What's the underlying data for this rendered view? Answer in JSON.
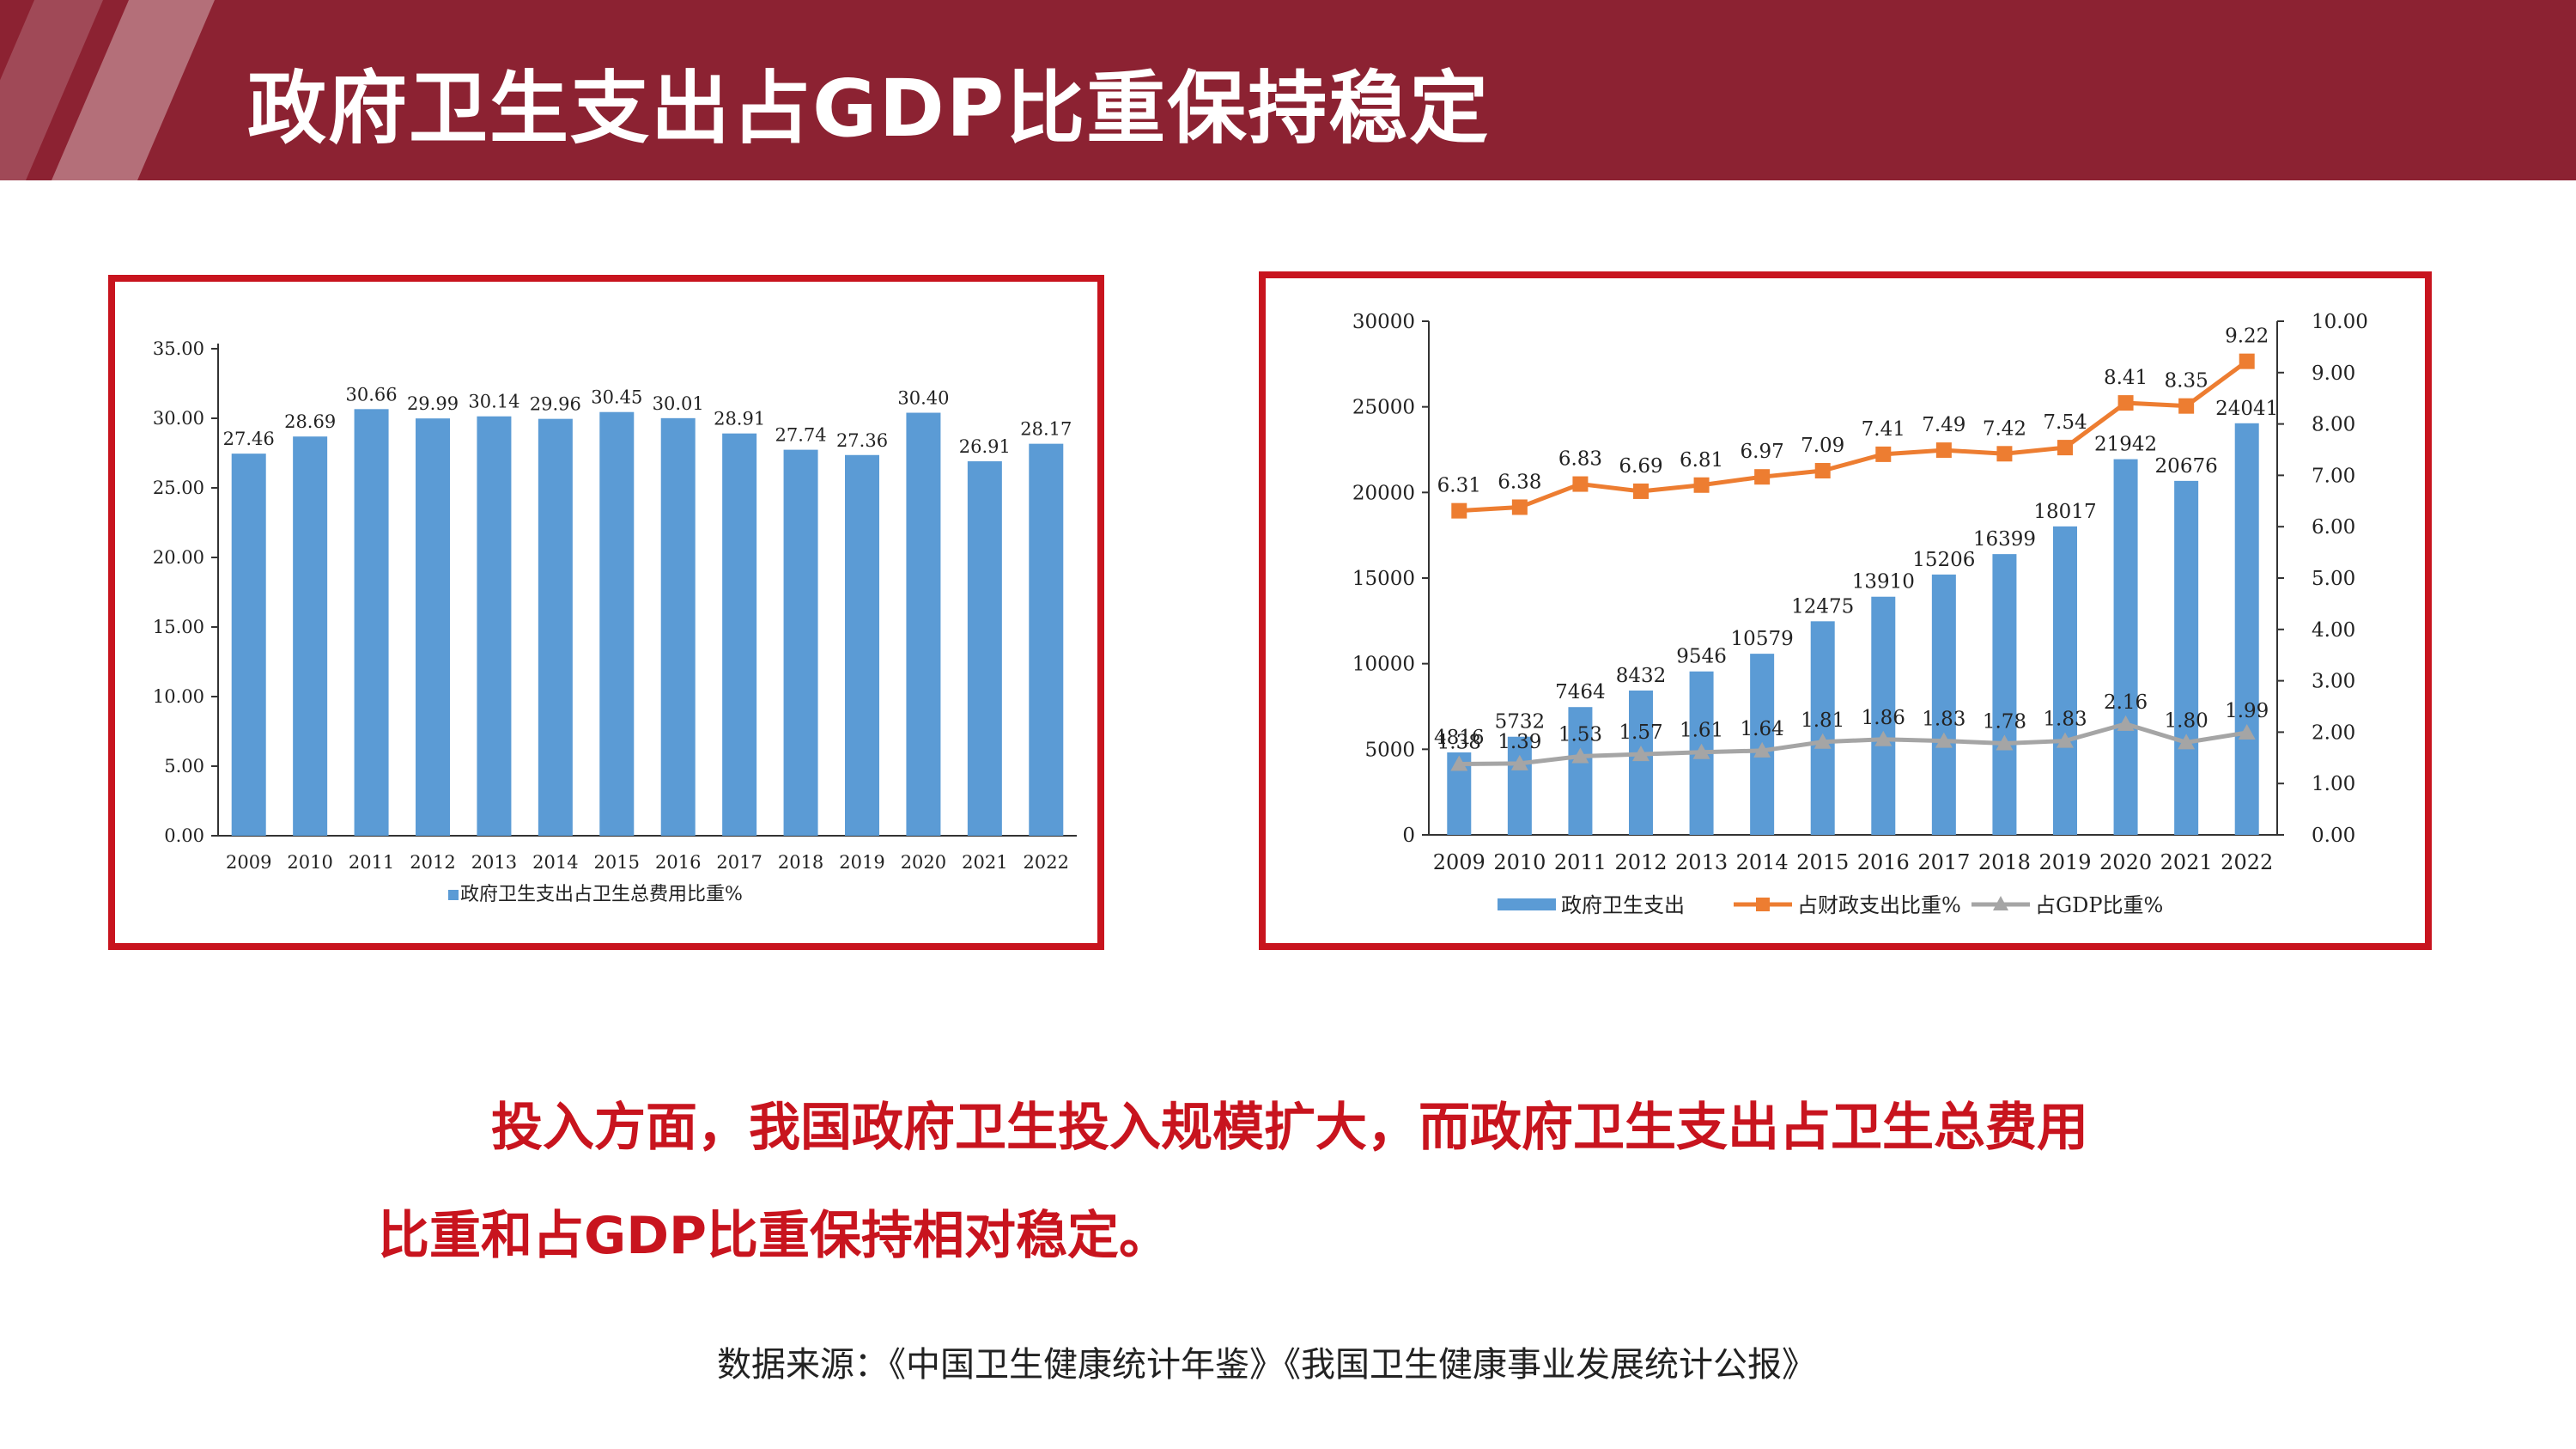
{
  "slide": {
    "title": "政府卫生支出占GDP比重保持稳定",
    "body_line1": "投入方面，我国政府卫生投入规模扩大，而政府卫生支出占卫生总费用",
    "body_line2": "比重和占GDP比重保持相对稳定。",
    "source": "数据来源：《中国卫生健康统计年鉴》《我国卫生健康事业发展统计公报》"
  },
  "colors": {
    "header": "#8c2232",
    "border": "#c8141e",
    "bar": "#5b9bd5",
    "orange": "#ed7d31",
    "gray": "#a5a5a5",
    "text_red": "#c8141e"
  },
  "chart_data": [
    {
      "type": "bar",
      "categories": [
        "2009",
        "2010",
        "2011",
        "2012",
        "2013",
        "2014",
        "2015",
        "2016",
        "2017",
        "2018",
        "2019",
        "2020",
        "2021",
        "2022"
      ],
      "series": [
        {
          "name": "政府卫生支出占卫生总费用比重%",
          "values": [
            27.46,
            28.69,
            30.66,
            29.99,
            30.14,
            29.96,
            30.45,
            30.01,
            28.91,
            27.74,
            27.36,
            30.4,
            26.91,
            28.17
          ]
        }
      ],
      "value_labels": [
        "27.46",
        "28.69",
        "30.66",
        "29.99",
        "30.14",
        "29.96",
        "30.45",
        "30.01",
        "28.91",
        "27.74",
        "27.36",
        "30.40",
        "26.91",
        "28.17"
      ],
      "ylim": [
        0,
        35
      ],
      "yticks": [
        "0.00",
        "5.00",
        "10.00",
        "15.00",
        "20.00",
        "25.00",
        "30.00",
        "35.00"
      ],
      "legend": "bottom"
    },
    {
      "type": "bar+line",
      "categories": [
        "2009",
        "2010",
        "2011",
        "2012",
        "2013",
        "2014",
        "2015",
        "2016",
        "2017",
        "2018",
        "2019",
        "2020",
        "2021",
        "2022"
      ],
      "series": [
        {
          "name": "政府卫生支出",
          "type": "bar",
          "axis": "left",
          "values": [
            4816,
            5732,
            7464,
            8432,
            9546,
            10579,
            12475,
            13910,
            15206,
            16399,
            18017,
            21942,
            20676,
            24041
          ],
          "labels": [
            "4816",
            "5732",
            "7464",
            "8432",
            "9546",
            "10579",
            "12475",
            "13910",
            "15206",
            "16399",
            "18017",
            "21942",
            "20676",
            "24041"
          ]
        },
        {
          "name": "占财政支出比重%",
          "type": "line",
          "axis": "right",
          "values": [
            6.31,
            6.38,
            6.83,
            6.69,
            6.81,
            6.97,
            7.09,
            7.41,
            7.49,
            7.42,
            7.54,
            8.41,
            8.35,
            9.22
          ],
          "labels": [
            "6.31",
            "6.38",
            "6.83",
            "6.69",
            "6.81",
            "6.97",
            "7.09",
            "7.41",
            "7.49",
            "7.42",
            "7.54",
            "8.41",
            "8.35",
            "9.22"
          ]
        },
        {
          "name": "占GDP比重%",
          "type": "line",
          "axis": "right",
          "values": [
            1.38,
            1.39,
            1.53,
            1.57,
            1.61,
            1.64,
            1.81,
            1.86,
            1.83,
            1.78,
            1.83,
            2.16,
            1.8,
            1.99
          ],
          "labels": [
            "1.38",
            "1.39",
            "1.53",
            "1.57",
            "1.61",
            "1.64",
            "1.81",
            "1.86",
            "1.83",
            "1.78",
            "1.83",
            "2.16",
            "1.80",
            "1.99"
          ]
        }
      ],
      "ylim_left": [
        0,
        30000
      ],
      "yticks_left": [
        "0",
        "5000",
        "10000",
        "15000",
        "20000",
        "25000",
        "30000"
      ],
      "ylim_right": [
        0,
        10
      ],
      "yticks_right": [
        "0.00",
        "1.00",
        "2.00",
        "3.00",
        "4.00",
        "5.00",
        "6.00",
        "7.00",
        "8.00",
        "9.00",
        "10.00"
      ],
      "legend": "bottom"
    }
  ]
}
